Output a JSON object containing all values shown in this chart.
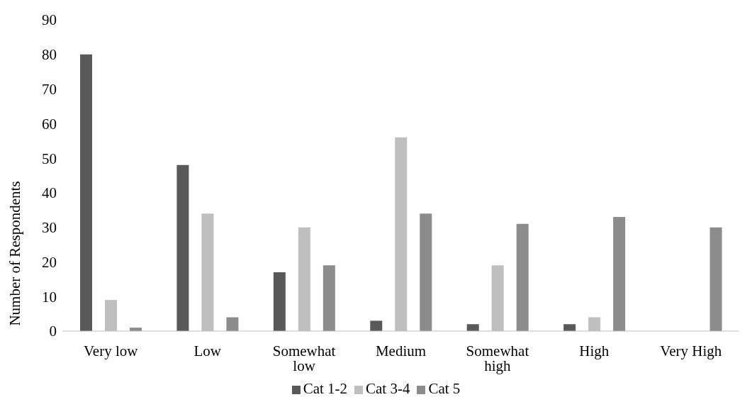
{
  "chart_data": {
    "type": "bar",
    "ylabel": "Number of Respondents",
    "categories": [
      "Very low",
      "Low",
      "Somewhat low",
      "Medium",
      "Somewhat high",
      "High",
      "Very High"
    ],
    "series": [
      {
        "name": "Cat 1-2",
        "color": "#595959",
        "values": [
          80,
          48,
          17,
          3,
          2,
          2,
          0
        ]
      },
      {
        "name": "Cat 3-4",
        "color": "#bfbfbf",
        "values": [
          9,
          34,
          30,
          56,
          19,
          4,
          0
        ]
      },
      {
        "name": "Cat 5",
        "color": "#8c8c8c",
        "values": [
          1,
          4,
          19,
          34,
          31,
          33,
          30
        ]
      }
    ],
    "ylim": [
      0,
      90
    ],
    "yticks": [
      0,
      10,
      20,
      30,
      40,
      50,
      60,
      70,
      80,
      90
    ],
    "grid": false,
    "legend": "bottom"
  }
}
